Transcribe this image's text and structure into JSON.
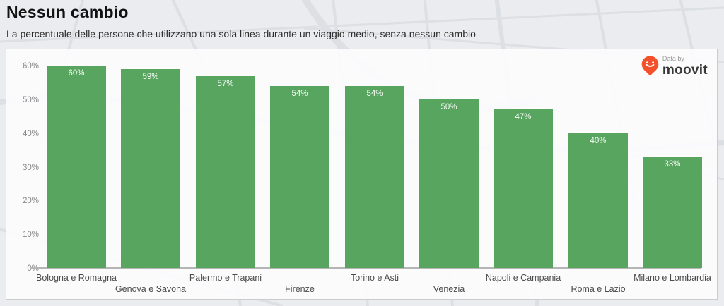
{
  "header": {
    "title": "Nessun cambio",
    "subtitle": "La percentuale delle persone che utilizzano una sola linea durante un viaggio medio, senza nessun cambio"
  },
  "attribution": {
    "data_by_label": "Data by",
    "brand_label": "moovit",
    "pin_icon": "moovit-smiley-map-pin",
    "pin_color": "#f2512b"
  },
  "colors": {
    "bar_green": "#57a55e",
    "axis_line": "#b5b5b5",
    "panel_background": "#fcfcfd",
    "page_background": "#eaecef"
  },
  "chart_data": {
    "type": "bar",
    "title": "Nessun cambio",
    "subtitle": "La percentuale delle persone che utilizzano una sola linea durante un viaggio medio, senza nessun cambio",
    "categories": [
      "Bologna e Romagna",
      "Genova e Savona",
      "Palermo e Trapani",
      "Firenze",
      "Torino e Asti",
      "Venezia",
      "Napoli e Campania",
      "Roma e Lazio",
      "Milano e Lombardia"
    ],
    "values": [
      60,
      59,
      57,
      54,
      54,
      50,
      47,
      40,
      33
    ],
    "value_labels": [
      "60%",
      "59%",
      "57%",
      "54%",
      "54%",
      "50%",
      "47%",
      "40%",
      "33%"
    ],
    "xlabel": "",
    "ylabel": "",
    "ylim": [
      0,
      60
    ],
    "ytick_labels": [
      "0%",
      "10%",
      "20%",
      "30%",
      "40%",
      "50%",
      "60%"
    ],
    "grid": false,
    "legend": false,
    "bar_color": "#57a55e",
    "value_label_position": "inside-top"
  }
}
